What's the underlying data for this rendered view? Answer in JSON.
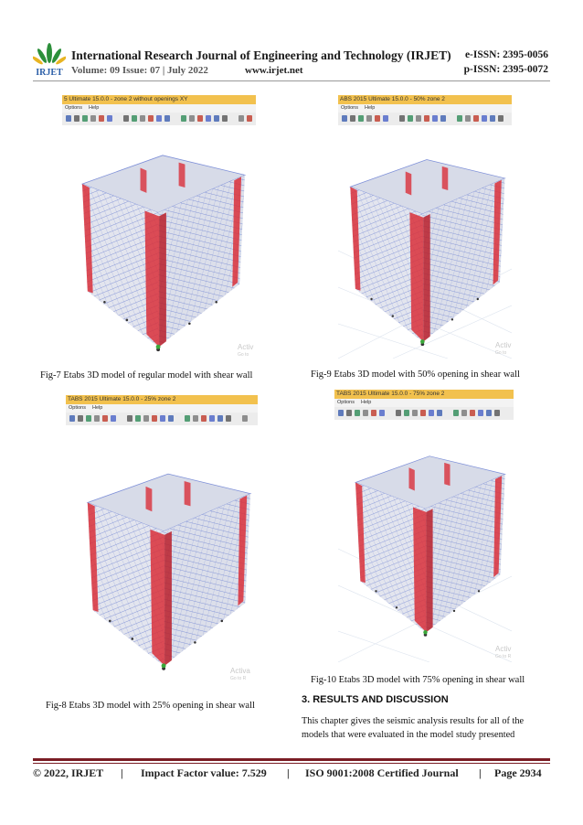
{
  "header": {
    "logo_text": "IRJET",
    "journal_title": "International Research Journal of Engineering and Technology (IRJET)",
    "e_issn": "e-ISSN: 2395-0056",
    "volume_issue": "Volume: 09 Issue: 07 | July 2022",
    "website": "www.irjet.net",
    "p_issn": "p-ISSN: 2395-0072"
  },
  "figures": [
    {
      "window_title": "5 Ultimate 15.0.0 - zone 2 without openings XY",
      "menu": [
        "Options",
        "Help"
      ],
      "watermark": [
        "Activ",
        "Go to"
      ],
      "caption": "Fig-7  Etabs  3D model of  regular model with shear wall"
    },
    {
      "window_title": "ABS 2015 Ultimate 15.0.0 - 50% zone 2",
      "menu": [
        "Options",
        "Help"
      ],
      "watermark": [
        "Activ",
        "Go to"
      ],
      "caption": "Fig-9  Etabs  3D model with 50% opening in shear wall"
    },
    {
      "window_title": "TABS 2015 Ultimate 15.0.0 - 25% zone 2",
      "menu": [
        "Options",
        "Help"
      ],
      "watermark": [
        "Activa",
        "Go to R"
      ],
      "caption": "Fig-8 Etabs  3D model with 25% opening in shear wall"
    },
    {
      "window_title": "TABS 2015 Ultimate 15.0.0 - 75% zone 2",
      "menu": [
        "Options",
        "Help"
      ],
      "watermark": [
        "Activ",
        "Go to R"
      ],
      "caption": "Fig-10  Etabs  3D model with 75% opening in shear wall"
    }
  ],
  "section": {
    "heading": "3. RESULTS  AND  DISCUSSION",
    "paragraph_lines": [
      "This chapter gives the seismic analysis results for all of the",
      "models that were evaluated in the model study presented"
    ]
  },
  "footer": {
    "copyright": "© 2022, IRJET",
    "separator": "|",
    "impact": "Impact Factor value: 7.529",
    "iso": "ISO 9001:2008 Certified Journal",
    "page": "Page 2934"
  }
}
